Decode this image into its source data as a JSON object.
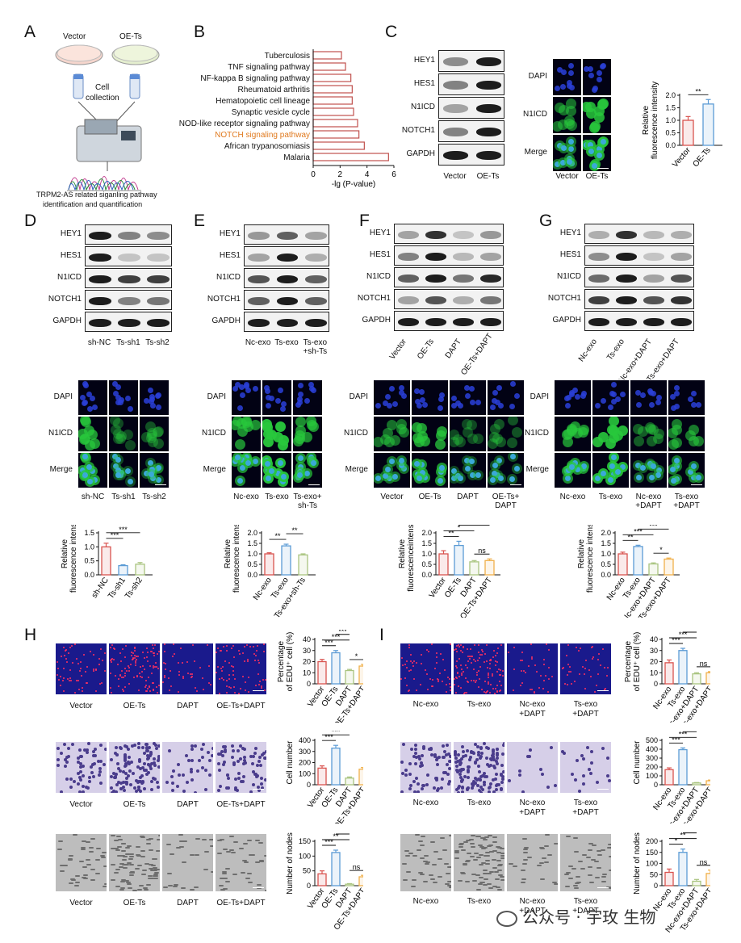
{
  "panels": {
    "A": {
      "label": "A",
      "dish_left": "Vector",
      "dish_right": "OE-Ts",
      "step": [
        "Cell",
        "collection"
      ],
      "caption": [
        "TRPM2-AS related siganling pathway",
        "identification and quantification"
      ]
    },
    "B": {
      "label": "B",
      "xlabel": "-lg (P-value)",
      "xticks": [
        "0",
        "2",
        "4",
        "6"
      ],
      "highlight_color": "#e07a1f",
      "bar_color": "#c0504d"
    },
    "C": {
      "label": "C",
      "blot_rows": [
        "HEY1",
        "HES1",
        "N1ICD",
        "NOTCH1",
        "GAPDH"
      ],
      "lanes": [
        "Vector",
        "OE-Ts"
      ],
      "fl_rows": [
        "DAPI",
        "N1ICD",
        "Merge"
      ],
      "fl_cols": [
        "Vector",
        "OE-Ts"
      ],
      "scale": "20 μm"
    },
    "D": {
      "label": "D",
      "blot_rows": [
        "HEY1",
        "HES1",
        "N1ICD",
        "NOTCH1",
        "GAPDH"
      ],
      "lanes": [
        "sh-NC",
        "Ts-sh1",
        "Ts-sh2"
      ],
      "fl_rows": [
        "DAPI",
        "N1ICD",
        "Merge"
      ],
      "fl_cols": [
        "sh-NC",
        "Ts-sh1",
        "Ts-sh2"
      ]
    },
    "E": {
      "label": "E",
      "blot_rows": [
        "HEY1",
        "HES1",
        "N1ICD",
        "NOTCH1",
        "GAPDH"
      ],
      "lanes": [
        "Nc-exo",
        "Ts-exo",
        "Ts-exo\n+sh-Ts"
      ],
      "fl_rows": [
        "DAPI",
        "N1ICD",
        "Merge"
      ],
      "fl_cols": [
        "Nc-exo",
        "Ts-exo",
        "Ts-exo+\nsh-Ts"
      ]
    },
    "F": {
      "label": "F",
      "blot_rows": [
        "HEY1",
        "HES1",
        "N1ICD",
        "NOTCH1",
        "GAPDH"
      ],
      "lanes": [
        "Vector",
        "OE-Ts",
        "DAPT",
        "OE-Ts+DAPT"
      ],
      "fl_rows": [
        "DAPI",
        "N1ICD",
        "Merge"
      ],
      "fl_cols": [
        "Vector",
        "OE-Ts",
        "DAPT",
        "OE-Ts+\nDAPT"
      ]
    },
    "G": {
      "label": "G",
      "blot_rows": [
        "HEY1",
        "HES1",
        "N1ICD",
        "NOTCH1",
        "GAPDH"
      ],
      "lanes": [
        "Nc-exo",
        "Ts-exo",
        "Nc-exo+DAPT",
        "Ts-exo+DAPT"
      ],
      "fl_rows": [
        "DAPI",
        "N1ICD",
        "Merge"
      ],
      "fl_cols": [
        "Nc-exo",
        "Ts-exo",
        "Nc-exo\n+DAPT",
        "Ts-exo\n+DAPT"
      ]
    },
    "H": {
      "label": "H",
      "cols": [
        "Vector",
        "OE-Ts",
        "DAPT",
        "OE-Ts+DAPT"
      ]
    },
    "I": {
      "label": "I",
      "cols": [
        "Nc-exo",
        "Ts-exo",
        "Nc-exo\n+DAPT",
        "Ts-exo\n+DAPT"
      ]
    }
  },
  "watermark": "公众号 · 宇玫 生物",
  "colors": {
    "vector": "#d9534f",
    "oe": "#5b9bd5",
    "dapt": "#a9c47f",
    "combo": "#f0b04a"
  },
  "chart_data": [
    {
      "id": "B",
      "type": "bar",
      "orientation": "horizontal",
      "categories": [
        "Tuberculosis",
        "TNF signaling pathway",
        "NF-kappa B signaling pathway",
        "Rheumatoid arthritis",
        "Hematopoietic cell lineage",
        "Synaptic vesicle cycle",
        "NOD-like receptor signaling pathway",
        "NOTCH signaling pathway",
        "African trypanosomiasis",
        "Malaria"
      ],
      "values": [
        2.1,
        2.4,
        2.8,
        2.9,
        2.9,
        3.0,
        3.3,
        3.4,
        3.8,
        5.6
      ],
      "xlabel": "-lg (P-value)",
      "xlim": [
        0,
        6
      ],
      "highlight": "NOTCH signaling pathway"
    },
    {
      "id": "C-bar",
      "type": "bar",
      "categories": [
        "Vector",
        "OE-Ts"
      ],
      "values": [
        1.0,
        1.65
      ],
      "errors": [
        0.15,
        0.18
      ],
      "ylabel": [
        "Relative",
        "fluorescence intensity"
      ],
      "ylim": [
        0,
        2.0
      ],
      "yticks": [
        "0.0",
        "0.5",
        "1.0",
        "1.5",
        "2.0"
      ],
      "sig": [
        {
          "a": 0,
          "b": 1,
          "t": "**"
        }
      ]
    },
    {
      "id": "D-bar",
      "type": "bar",
      "categories": [
        "sh-NC",
        "Ts-sh1",
        "Ts-sh2"
      ],
      "values": [
        1.0,
        0.33,
        0.38
      ],
      "errors": [
        0.13,
        0.03,
        0.06
      ],
      "ylabel": [
        "Relative",
        "fluorescence intensity"
      ],
      "ylim": [
        0,
        1.5
      ],
      "yticks": [
        "0.0",
        "0.5",
        "1.0",
        "1.5"
      ],
      "sig": [
        {
          "a": 0,
          "b": 1,
          "t": "***"
        },
        {
          "a": 0,
          "b": 2,
          "t": "***"
        }
      ]
    },
    {
      "id": "E-bar",
      "type": "bar",
      "categories": [
        "Nc-exo",
        "Ts-exo",
        "Ts-exo+sh-Ts"
      ],
      "values": [
        1.0,
        1.38,
        0.95
      ],
      "errors": [
        0.05,
        0.08,
        0.05
      ],
      "ylabel": [
        "Relative",
        "fluorescence intensity"
      ],
      "ylim": [
        0,
        2.0
      ],
      "yticks": [
        "0.0",
        "0.5",
        "1.0",
        "1.5",
        "2.0"
      ],
      "sig": [
        {
          "a": 0,
          "b": 1,
          "t": "**"
        },
        {
          "a": 1,
          "b": 2,
          "t": "**"
        }
      ]
    },
    {
      "id": "F-bar",
      "type": "bar",
      "categories": [
        "Vector",
        "OE-Ts",
        "DAPT",
        "OE-Ts+DAPT"
      ],
      "values": [
        1.0,
        1.4,
        0.62,
        0.68
      ],
      "errors": [
        0.15,
        0.2,
        0.06,
        0.08
      ],
      "ylabel": [
        "Relative",
        "fluorescenceintensity"
      ],
      "ylim": [
        0,
        2.0
      ],
      "yticks": [
        "0.0",
        "0.5",
        "1.0",
        "1.5",
        "2.0"
      ],
      "sig": [
        {
          "a": 0,
          "b": 1,
          "t": "**"
        },
        {
          "a": 0,
          "b": 2,
          "t": "*"
        },
        {
          "a": 1,
          "b": 3,
          "t": "***"
        },
        {
          "a": 2,
          "b": 3,
          "t": "ns"
        }
      ]
    },
    {
      "id": "G-bar",
      "type": "bar",
      "categories": [
        "Nc-exo",
        "Ts-exo",
        "Nc-exo+DAPT",
        "Ts-exo+DAPT"
      ],
      "values": [
        1.0,
        1.35,
        0.52,
        0.75
      ],
      "errors": [
        0.08,
        0.06,
        0.05,
        0.05
      ],
      "ylabel": [
        "Relative",
        "fluorescence intensity"
      ],
      "ylim": [
        0,
        2.0
      ],
      "yticks": [
        "0.0",
        "0.5",
        "1.0",
        "1.5",
        "2.0"
      ],
      "sig": [
        {
          "a": 0,
          "b": 1,
          "t": "**"
        },
        {
          "a": 0,
          "b": 2,
          "t": "***"
        },
        {
          "a": 1,
          "b": 3,
          "t": "***"
        },
        {
          "a": 2,
          "b": 3,
          "t": "*"
        }
      ]
    },
    {
      "id": "H-edu",
      "type": "bar",
      "categories": [
        "Vector",
        "OE-Ts",
        "DAPT",
        "OE-Ts+DAPT"
      ],
      "values": [
        20,
        28,
        12,
        16
      ],
      "errors": [
        2,
        2,
        1,
        1.5
      ],
      "ylabel": [
        "Percentage",
        "of EDU⁺ cell (%)"
      ],
      "ylim": [
        0,
        40
      ],
      "yticks": [
        "0",
        "10",
        "20",
        "30",
        "40"
      ],
      "sig": [
        {
          "a": 0,
          "b": 1,
          "t": "***"
        },
        {
          "a": 0,
          "b": 2,
          "t": "***"
        },
        {
          "a": 1,
          "b": 2,
          "t": "***"
        },
        {
          "a": 2,
          "b": 3,
          "t": "*"
        }
      ]
    },
    {
      "id": "H-cell",
      "type": "bar",
      "categories": [
        "Vector",
        "OE-Ts",
        "DAPT",
        "OE-Ts+DAPT"
      ],
      "values": [
        150,
        330,
        60,
        140
      ],
      "errors": [
        20,
        25,
        10,
        15
      ],
      "ylabel": [
        "Cell number"
      ],
      "ylim": [
        0,
        400
      ],
      "yticks": [
        "0",
        "100",
        "200",
        "300",
        "400"
      ],
      "sig": [
        {
          "a": 0,
          "b": 1,
          "t": "***"
        },
        {
          "a": 0,
          "b": 2,
          "t": "***"
        },
        {
          "a": 1,
          "b": 2,
          "t": "***"
        },
        {
          "a": 2,
          "b": 3,
          "t": "**"
        }
      ]
    },
    {
      "id": "H-nodes",
      "type": "bar",
      "categories": [
        "Vector",
        "OE-Ts",
        "DAPT",
        "OE-Ts+DAPT"
      ],
      "values": [
        40,
        112,
        5,
        30
      ],
      "errors": [
        10,
        8,
        2,
        5
      ],
      "ylabel": [
        "Number of nodes"
      ],
      "ylim": [
        0,
        150
      ],
      "yticks": [
        "0",
        "50",
        "100",
        "150"
      ],
      "sig": [
        {
          "a": 0,
          "b": 1,
          "t": "***"
        },
        {
          "a": 0,
          "b": 2,
          "t": "**"
        },
        {
          "a": 1,
          "b": 2,
          "t": "***"
        },
        {
          "a": 2,
          "b": 3,
          "t": "ns"
        }
      ]
    },
    {
      "id": "I-edu",
      "type": "bar",
      "categories": [
        "Nc-exo",
        "Ts-exo",
        "Nc-exo+DAPT",
        "Ts-exo+DAPT"
      ],
      "values": [
        19,
        30,
        9,
        10
      ],
      "errors": [
        2.5,
        2,
        1,
        1
      ],
      "ylabel": [
        "Percentage",
        "of EDU⁺ cell (%)"
      ],
      "ylim": [
        0,
        40
      ],
      "yticks": [
        "0",
        "10",
        "20",
        "30",
        "40"
      ],
      "sig": [
        {
          "a": 0,
          "b": 1,
          "t": "***"
        },
        {
          "a": 0,
          "b": 2,
          "t": "***"
        },
        {
          "a": 1,
          "b": 2,
          "t": "***"
        },
        {
          "a": 2,
          "b": 3,
          "t": "ns"
        }
      ]
    },
    {
      "id": "I-cell",
      "type": "bar",
      "categories": [
        "Nc-exo",
        "Ts-exo",
        "Nc-exo+DAPT",
        "Ts-exo+DAPT"
      ],
      "values": [
        170,
        395,
        20,
        45
      ],
      "errors": [
        20,
        20,
        5,
        8
      ],
      "ylabel": [
        "Cell number"
      ],
      "ylim": [
        0,
        500
      ],
      "yticks": [
        "0",
        "100",
        "200",
        "300",
        "400",
        "500"
      ],
      "sig": [
        {
          "a": 0,
          "b": 1,
          "t": "***"
        },
        {
          "a": 0,
          "b": 2,
          "t": "***"
        },
        {
          "a": 1,
          "b": 2,
          "t": "***"
        }
      ]
    },
    {
      "id": "I-nodes",
      "type": "bar",
      "categories": [
        "Nc-exo",
        "Ts-exo",
        "Nc-exo+DAPT",
        "Ts-exo+DAPT"
      ],
      "values": [
        60,
        150,
        20,
        55
      ],
      "errors": [
        15,
        15,
        8,
        15
      ],
      "ylabel": [
        "Number of nodes"
      ],
      "ylim": [
        0,
        200
      ],
      "yticks": [
        "0",
        "50",
        "100",
        "150",
        "200"
      ],
      "sig": [
        {
          "a": 0,
          "b": 1,
          "t": "*"
        },
        {
          "a": 0,
          "b": 2,
          "t": "**"
        },
        {
          "a": 1,
          "b": 2,
          "t": "***"
        },
        {
          "a": 2,
          "b": 3,
          "t": "ns"
        }
      ]
    }
  ]
}
